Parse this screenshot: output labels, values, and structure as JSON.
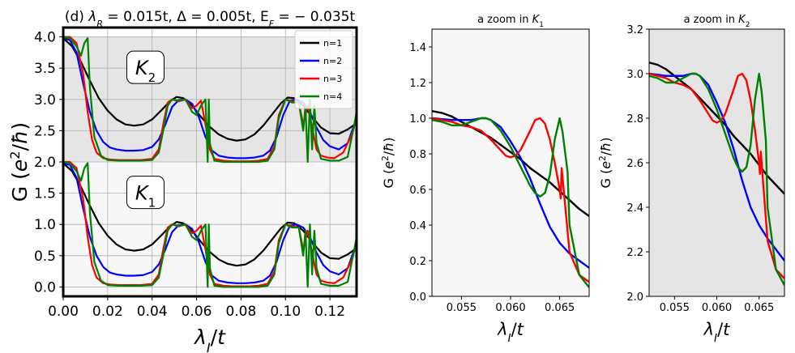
{
  "chart_data": [
    {
      "type": "line",
      "title": "(d) λ_R = 0.015t, Δ = 0.005t, E_F = −0.035t",
      "title_parts": {
        "panel": "(d)",
        "lambda_R": "λ",
        "lambda_R_sub": "R",
        "rest1": " = 0.015t, Δ = 0.005t, E",
        "E_sub": "F",
        "rest2": " = − 0.035t"
      },
      "xlabel": "λI/t",
      "ylabel": "G (e²/ħ)",
      "xlim": [
        0.0,
        0.132
      ],
      "ylim": [
        -0.15,
        4.15
      ],
      "xticks": [
        "0.00",
        "0.02",
        "0.04",
        "0.06",
        "0.08",
        "0.10",
        "0.12"
      ],
      "yticks": [
        "0.0",
        "0.5",
        "1.0",
        "1.5",
        "2.0",
        "2.5",
        "3.0",
        "3.5",
        "4.0"
      ],
      "grid": true,
      "legend": "top-right",
      "shaded_band": {
        "y_from": 2.0,
        "y_to": 4.0,
        "color": "#e5e5e5"
      },
      "lower_band_color": "#f7f7f7",
      "labels": [
        {
          "text": "K2",
          "main": "K",
          "sub": "2",
          "x": 0.037,
          "y": 3.5
        },
        {
          "text": "K1",
          "main": "K",
          "sub": "1",
          "x": 0.037,
          "y": 1.5
        }
      ],
      "series": [
        {
          "name": "n=1",
          "color": "#000000",
          "x": [
            0.0,
            0.004,
            0.008,
            0.012,
            0.016,
            0.02,
            0.024,
            0.028,
            0.032,
            0.036,
            0.04,
            0.044,
            0.048,
            0.051,
            0.054,
            0.058,
            0.062,
            0.066,
            0.07,
            0.074,
            0.078,
            0.082,
            0.086,
            0.09,
            0.094,
            0.098,
            0.101,
            0.104,
            0.108,
            0.112,
            0.116,
            0.12,
            0.124,
            0.128,
            0.132
          ],
          "lower": [
            1.98,
            1.85,
            1.6,
            1.3,
            1.02,
            0.82,
            0.68,
            0.6,
            0.58,
            0.6,
            0.68,
            0.82,
            0.97,
            1.04,
            1.02,
            0.9,
            0.72,
            0.56,
            0.44,
            0.37,
            0.34,
            0.36,
            0.44,
            0.58,
            0.76,
            0.94,
            1.03,
            1.02,
            0.9,
            0.72,
            0.55,
            0.46,
            0.45,
            0.52,
            0.62
          ]
        },
        {
          "name": "n=2",
          "color": "#0000ff",
          "x": [
            0.0,
            0.003,
            0.006,
            0.009,
            0.012,
            0.015,
            0.018,
            0.021,
            0.024,
            0.028,
            0.032,
            0.036,
            0.04,
            0.043,
            0.046,
            0.049,
            0.052,
            0.055,
            0.058,
            0.061,
            0.064,
            0.067,
            0.07,
            0.074,
            0.078,
            0.082,
            0.086,
            0.09,
            0.093,
            0.096,
            0.099,
            0.102,
            0.105,
            0.108,
            0.111,
            0.114,
            0.117,
            0.12,
            0.124,
            0.128,
            0.132
          ],
          "lower": [
            1.98,
            1.95,
            1.75,
            1.25,
            0.8,
            0.5,
            0.32,
            0.23,
            0.2,
            0.18,
            0.18,
            0.19,
            0.24,
            0.36,
            0.6,
            0.88,
            0.99,
            1.0,
            0.93,
            0.72,
            0.4,
            0.18,
            0.1,
            0.07,
            0.06,
            0.06,
            0.07,
            0.1,
            0.18,
            0.4,
            0.75,
            0.98,
            1.0,
            0.95,
            0.8,
            0.55,
            0.35,
            0.25,
            0.2,
            0.3,
            0.7
          ]
        },
        {
          "name": "n=3",
          "color": "#ff0000",
          "x": [
            0.0,
            0.003,
            0.006,
            0.009,
            0.011,
            0.013,
            0.015,
            0.018,
            0.021,
            0.025,
            0.03,
            0.035,
            0.04,
            0.043,
            0.045,
            0.047,
            0.049,
            0.052,
            0.055,
            0.058,
            0.06,
            0.062,
            0.064,
            0.066,
            0.068,
            0.072,
            0.076,
            0.08,
            0.084,
            0.088,
            0.092,
            0.095,
            0.097,
            0.1,
            0.103,
            0.106,
            0.108,
            0.11,
            0.112,
            0.114,
            0.116,
            0.119,
            0.122,
            0.126,
            0.13,
            0.132
          ],
          "lower": [
            2.0,
            2.0,
            1.9,
            1.4,
            0.8,
            0.35,
            0.15,
            0.06,
            0.04,
            0.03,
            0.03,
            0.03,
            0.05,
            0.2,
            0.6,
            0.95,
            1.0,
            0.97,
            1.0,
            0.86,
            0.9,
            0.98,
            0.6,
            0.2,
            0.05,
            0.02,
            0.01,
            0.01,
            0.01,
            0.02,
            0.05,
            0.25,
            0.75,
            1.0,
            0.97,
            0.95,
            0.6,
            0.9,
            0.55,
            0.2,
            0.1,
            0.07,
            0.06,
            0.15,
            0.45,
            0.7
          ]
        },
        {
          "name": "n=4",
          "color": "#008000",
          "x": [
            0.0,
            0.003,
            0.006,
            0.008,
            0.0095,
            0.011,
            0.012,
            0.014,
            0.017,
            0.02,
            0.025,
            0.03,
            0.035,
            0.04,
            0.043,
            0.045,
            0.047,
            0.049,
            0.052,
            0.055,
            0.058,
            0.06,
            0.062,
            0.064,
            0.065,
            0.0655,
            0.066,
            0.068,
            0.072,
            0.076,
            0.08,
            0.084,
            0.088,
            0.092,
            0.095,
            0.097,
            0.1,
            0.103,
            0.106,
            0.108,
            0.109,
            0.11,
            0.111,
            0.112,
            0.113,
            0.114,
            0.116,
            0.12,
            0.124,
            0.128,
            0.131,
            0.132
          ],
          "lower": [
            2.0,
            1.98,
            1.85,
            1.7,
            1.9,
            1.98,
            1.2,
            0.4,
            0.1,
            0.03,
            0.02,
            0.02,
            0.02,
            0.03,
            0.15,
            0.5,
            0.9,
            1.0,
            0.98,
            1.0,
            0.8,
            0.75,
            0.9,
            1.0,
            0.0,
            1.0,
            0.3,
            0.02,
            0.0,
            0.0,
            0.0,
            0.0,
            0.0,
            0.02,
            0.2,
            0.7,
            1.0,
            0.95,
            0.95,
            0.5,
            0.9,
            0.0,
            1.0,
            0.2,
            0.9,
            0.3,
            0.05,
            0.02,
            0.02,
            0.08,
            0.6,
            0.8
          ]
        }
      ]
    },
    {
      "type": "line",
      "title": "a zoom in K1",
      "title_parts": {
        "text": "a zoom in ",
        "main": "K",
        "sub": "1"
      },
      "xlabel": "λI/t",
      "ylabel": "G (e²/ħ)",
      "xlim": [
        0.052,
        0.068
      ],
      "ylim": [
        0.0,
        1.5
      ],
      "xticks": [
        "0.055",
        "0.060",
        "0.065"
      ],
      "yticks": [
        "0.0",
        "0.2",
        "0.4",
        "0.6",
        "0.8",
        "1.0",
        "1.2",
        "1.4"
      ],
      "background": "#f7f7f7",
      "series": [
        {
          "name": "n=1",
          "color": "#000000",
          "x": [
            0.052,
            0.053,
            0.054,
            0.055,
            0.056,
            0.057,
            0.058,
            0.059,
            0.06,
            0.061,
            0.062,
            0.063,
            0.064,
            0.065,
            0.066,
            0.067,
            0.068
          ],
          "y": [
            1.04,
            1.03,
            1.01,
            0.98,
            0.95,
            0.92,
            0.89,
            0.85,
            0.81,
            0.77,
            0.72,
            0.68,
            0.64,
            0.59,
            0.54,
            0.49,
            0.45
          ]
        },
        {
          "name": "n=2",
          "color": "#0000ff",
          "x": [
            0.052,
            0.054,
            0.056,
            0.057,
            0.0575,
            0.058,
            0.059,
            0.06,
            0.061,
            0.062,
            0.063,
            0.064,
            0.065,
            0.066,
            0.067,
            0.068
          ],
          "y": [
            1.0,
            0.99,
            0.99,
            1.0,
            1.0,
            0.99,
            0.95,
            0.87,
            0.78,
            0.66,
            0.52,
            0.39,
            0.3,
            0.24,
            0.2,
            0.16
          ]
        },
        {
          "name": "n=3",
          "color": "#ff0000",
          "x": [
            0.052,
            0.053,
            0.054,
            0.055,
            0.056,
            0.057,
            0.058,
            0.059,
            0.0595,
            0.06,
            0.0605,
            0.061,
            0.062,
            0.0625,
            0.063,
            0.0635,
            0.064,
            0.0645,
            0.065,
            0.0651,
            0.0652,
            0.066,
            0.067,
            0.068
          ],
          "y": [
            1.0,
            0.99,
            0.98,
            0.96,
            0.95,
            0.93,
            0.88,
            0.82,
            0.79,
            0.78,
            0.79,
            0.82,
            0.93,
            0.99,
            1.0,
            0.97,
            0.88,
            0.75,
            0.6,
            0.55,
            0.72,
            0.25,
            0.12,
            0.08
          ]
        },
        {
          "name": "n=4",
          "color": "#008000",
          "x": [
            0.052,
            0.053,
            0.054,
            0.055,
            0.056,
            0.057,
            0.0575,
            0.058,
            0.059,
            0.06,
            0.061,
            0.062,
            0.0625,
            0.063,
            0.0635,
            0.064,
            0.0645,
            0.065,
            0.0653,
            0.0658,
            0.066,
            0.067,
            0.068
          ],
          "y": [
            0.99,
            0.98,
            0.96,
            0.96,
            0.98,
            1.0,
            1.0,
            0.99,
            0.93,
            0.84,
            0.73,
            0.62,
            0.58,
            0.56,
            0.58,
            0.68,
            0.88,
            1.0,
            0.92,
            0.7,
            0.4,
            0.12,
            0.05
          ]
        }
      ]
    },
    {
      "type": "line",
      "title": "a zoom in K2",
      "title_parts": {
        "text": "a zoom in ",
        "main": "K",
        "sub": "2"
      },
      "xlabel": "λI/t",
      "ylabel": "G (e²/ħ)",
      "xlim": [
        0.052,
        0.068
      ],
      "ylim": [
        2.0,
        3.2
      ],
      "xticks": [
        "0.055",
        "0.060",
        "0.065"
      ],
      "yticks": [
        "2.0",
        "2.2",
        "2.4",
        "2.6",
        "2.8",
        "3.0",
        "3.2"
      ],
      "background": "#e5e5e5",
      "series": [
        {
          "name": "n=1",
          "color": "#000000",
          "x": [
            0.052,
            0.053,
            0.054,
            0.055,
            0.056,
            0.057,
            0.058,
            0.059,
            0.06,
            0.061,
            0.062,
            0.063,
            0.064,
            0.065,
            0.066,
            0.067,
            0.068
          ],
          "y": [
            3.05,
            3.04,
            3.02,
            2.99,
            2.96,
            2.93,
            2.89,
            2.85,
            2.81,
            2.77,
            2.72,
            2.68,
            2.64,
            2.59,
            2.54,
            2.5,
            2.46
          ]
        },
        {
          "name": "n=2",
          "color": "#0000ff",
          "x": [
            0.052,
            0.054,
            0.056,
            0.057,
            0.0575,
            0.058,
            0.059,
            0.06,
            0.061,
            0.062,
            0.063,
            0.064,
            0.065,
            0.066,
            0.067,
            0.068
          ],
          "y": [
            3.0,
            2.99,
            2.99,
            3.0,
            3.0,
            2.99,
            2.95,
            2.87,
            2.78,
            2.66,
            2.52,
            2.4,
            2.32,
            2.26,
            2.21,
            2.16
          ]
        },
        {
          "name": "n=3",
          "color": "#ff0000",
          "x": [
            0.052,
            0.053,
            0.054,
            0.055,
            0.056,
            0.057,
            0.058,
            0.059,
            0.0595,
            0.06,
            0.0605,
            0.061,
            0.062,
            0.0625,
            0.063,
            0.0635,
            0.064,
            0.0645,
            0.065,
            0.0651,
            0.0652,
            0.066,
            0.067,
            0.068
          ],
          "y": [
            3.0,
            2.99,
            2.98,
            2.96,
            2.95,
            2.93,
            2.88,
            2.82,
            2.79,
            2.78,
            2.79,
            2.82,
            2.93,
            2.99,
            3.0,
            2.97,
            2.88,
            2.75,
            2.6,
            2.55,
            2.65,
            2.25,
            2.12,
            2.08
          ]
        },
        {
          "name": "n=4",
          "color": "#008000",
          "x": [
            0.052,
            0.053,
            0.054,
            0.055,
            0.056,
            0.057,
            0.0575,
            0.058,
            0.059,
            0.06,
            0.061,
            0.062,
            0.0625,
            0.063,
            0.0635,
            0.064,
            0.0645,
            0.065,
            0.0653,
            0.0658,
            0.066,
            0.067,
            0.068
          ],
          "y": [
            2.99,
            2.98,
            2.96,
            2.96,
            2.98,
            3.0,
            3.0,
            2.99,
            2.93,
            2.84,
            2.73,
            2.62,
            2.58,
            2.56,
            2.58,
            2.68,
            2.88,
            3.0,
            2.92,
            2.7,
            2.4,
            2.12,
            2.05
          ]
        }
      ]
    }
  ]
}
